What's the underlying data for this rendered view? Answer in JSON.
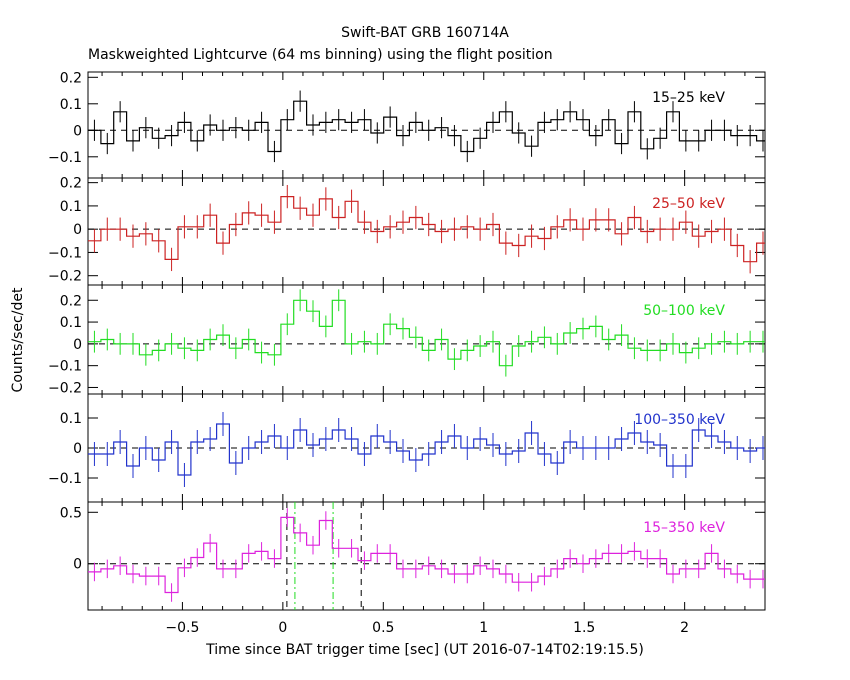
{
  "figure": {
    "title": "Swift-BAT GRB 160714A",
    "subtitle": "Maskweighted Lightcurve (64 ms binning) using the flight position",
    "xlabel": "Time since BAT trigger time [sec] (UT 2016-07-14T02:19:15.5)",
    "ylabel": "Counts/sec/det"
  },
  "chart_data": [
    {
      "type": "line",
      "panel": "15-25 keV",
      "label": "15–25 keV",
      "color": "#000000",
      "xlim": [
        -0.97,
        2.4
      ],
      "ylim": [
        -0.18,
        0.22
      ],
      "yticks": [
        -0.1,
        0,
        0.1,
        0.2
      ],
      "ytick_labels": [
        "−0.1",
        "0",
        "0.1",
        "0.2"
      ],
      "x": [
        -0.97,
        -0.906,
        -0.842,
        -0.778,
        -0.714,
        -0.65,
        -0.586,
        -0.522,
        -0.458,
        -0.394,
        -0.33,
        -0.266,
        -0.202,
        -0.138,
        -0.074,
        -0.01,
        0.054,
        0.118,
        0.182,
        0.246,
        0.31,
        0.374,
        0.438,
        0.502,
        0.566,
        0.63,
        0.694,
        0.758,
        0.822,
        0.886,
        0.95,
        1.014,
        1.078,
        1.142,
        1.206,
        1.27,
        1.334,
        1.398,
        1.462,
        1.526,
        1.59,
        1.654,
        1.718,
        1.782,
        1.846,
        1.91,
        1.974,
        2.038,
        2.102,
        2.166,
        2.23,
        2.294,
        2.358
      ],
      "values": [
        0.0,
        -0.05,
        0.07,
        -0.04,
        0.01,
        -0.03,
        -0.02,
        0.03,
        -0.04,
        0.02,
        0.0,
        0.01,
        0.0,
        0.03,
        -0.08,
        0.04,
        0.11,
        0.02,
        0.03,
        0.04,
        0.03,
        0.04,
        -0.01,
        0.05,
        -0.02,
        0.03,
        0.0,
        0.01,
        -0.02,
        -0.08,
        -0.03,
        0.03,
        0.07,
        -0.01,
        -0.06,
        0.03,
        0.04,
        0.07,
        0.04,
        -0.02,
        0.04,
        -0.05,
        0.07,
        -0.07,
        -0.03,
        0.07,
        -0.04,
        -0.04,
        0.0,
        0.0,
        -0.02,
        -0.02,
        -0.04
      ],
      "errors": [
        0.04,
        0.04,
        0.04,
        0.04,
        0.04,
        0.04,
        0.04,
        0.04,
        0.04,
        0.04,
        0.04,
        0.04,
        0.04,
        0.04,
        0.04,
        0.04,
        0.04,
        0.04,
        0.04,
        0.04,
        0.04,
        0.04,
        0.04,
        0.04,
        0.04,
        0.04,
        0.04,
        0.04,
        0.04,
        0.04,
        0.04,
        0.04,
        0.04,
        0.04,
        0.04,
        0.04,
        0.04,
        0.04,
        0.04,
        0.04,
        0.04,
        0.04,
        0.04,
        0.04,
        0.04,
        0.04,
        0.04,
        0.04,
        0.04,
        0.04,
        0.04,
        0.04,
        0.04
      ]
    },
    {
      "type": "line",
      "panel": "25-50 keV",
      "label": "25–50 keV",
      "color": "#cc2222",
      "xlim": [
        -0.97,
        2.4
      ],
      "ylim": [
        -0.24,
        0.22
      ],
      "yticks": [
        -0.2,
        -0.1,
        0,
        0.1,
        0.2
      ],
      "ytick_labels": [
        "−0.2",
        "−0.1",
        "0",
        "0.1",
        "0.2"
      ],
      "x": [
        -0.97,
        -0.906,
        -0.842,
        -0.778,
        -0.714,
        -0.65,
        -0.586,
        -0.522,
        -0.458,
        -0.394,
        -0.33,
        -0.266,
        -0.202,
        -0.138,
        -0.074,
        -0.01,
        0.054,
        0.118,
        0.182,
        0.246,
        0.31,
        0.374,
        0.438,
        0.502,
        0.566,
        0.63,
        0.694,
        0.758,
        0.822,
        0.886,
        0.95,
        1.014,
        1.078,
        1.142,
        1.206,
        1.27,
        1.334,
        1.398,
        1.462,
        1.526,
        1.59,
        1.654,
        1.718,
        1.782,
        1.846,
        1.91,
        1.974,
        2.038,
        2.102,
        2.166,
        2.23,
        2.294,
        2.358
      ],
      "values": [
        -0.05,
        0.0,
        0.0,
        -0.03,
        -0.02,
        -0.05,
        -0.13,
        0.01,
        0.01,
        0.06,
        -0.06,
        0.02,
        0.07,
        0.06,
        0.03,
        0.14,
        0.09,
        0.06,
        0.13,
        0.05,
        0.12,
        0.03,
        -0.01,
        0.01,
        0.03,
        0.05,
        0.02,
        -0.01,
        0.0,
        0.01,
        0.0,
        0.02,
        -0.06,
        -0.07,
        -0.03,
        -0.04,
        0.01,
        0.04,
        0.0,
        0.04,
        0.04,
        -0.02,
        0.05,
        -0.01,
        0.0,
        0.0,
        0.03,
        -0.03,
        -0.01,
        0.0,
        -0.07,
        -0.14,
        -0.06
      ],
      "errors": [
        0.05,
        0.05,
        0.05,
        0.05,
        0.05,
        0.05,
        0.05,
        0.05,
        0.05,
        0.05,
        0.05,
        0.05,
        0.05,
        0.05,
        0.05,
        0.05,
        0.05,
        0.05,
        0.05,
        0.05,
        0.05,
        0.05,
        0.05,
        0.05,
        0.05,
        0.05,
        0.05,
        0.05,
        0.05,
        0.05,
        0.05,
        0.05,
        0.05,
        0.05,
        0.05,
        0.05,
        0.05,
        0.05,
        0.05,
        0.05,
        0.05,
        0.05,
        0.05,
        0.05,
        0.05,
        0.05,
        0.05,
        0.05,
        0.05,
        0.05,
        0.05,
        0.05,
        0.05
      ]
    },
    {
      "type": "line",
      "panel": "50-100 keV",
      "label": "50–100 keV",
      "color": "#22dd22",
      "xlim": [
        -0.97,
        2.4
      ],
      "ylim": [
        -0.23,
        0.27
      ],
      "yticks": [
        -0.2,
        -0.1,
        0,
        0.1,
        0.2
      ],
      "ytick_labels": [
        "−0.2",
        "−0.1",
        "0",
        "0.1",
        "0.2"
      ],
      "x": [
        -0.97,
        -0.906,
        -0.842,
        -0.778,
        -0.714,
        -0.65,
        -0.586,
        -0.522,
        -0.458,
        -0.394,
        -0.33,
        -0.266,
        -0.202,
        -0.138,
        -0.074,
        -0.01,
        0.054,
        0.118,
        0.182,
        0.246,
        0.31,
        0.374,
        0.438,
        0.502,
        0.566,
        0.63,
        0.694,
        0.758,
        0.822,
        0.886,
        0.95,
        1.014,
        1.078,
        1.142,
        1.206,
        1.27,
        1.334,
        1.398,
        1.462,
        1.526,
        1.59,
        1.654,
        1.718,
        1.782,
        1.846,
        1.91,
        1.974,
        2.038,
        2.102,
        2.166,
        2.23,
        2.294,
        2.358
      ],
      "values": [
        0.01,
        0.02,
        0.0,
        0.0,
        -0.05,
        -0.03,
        0.0,
        -0.02,
        -0.03,
        0.02,
        0.04,
        -0.02,
        0.02,
        -0.04,
        -0.05,
        0.09,
        0.2,
        0.15,
        0.08,
        0.2,
        0.0,
        0.01,
        0.0,
        0.09,
        0.07,
        0.03,
        -0.03,
        0.02,
        -0.07,
        -0.03,
        -0.01,
        0.01,
        -0.1,
        -0.01,
        0.01,
        0.03,
        0.0,
        0.05,
        0.07,
        0.08,
        0.02,
        0.04,
        -0.02,
        -0.03,
        -0.03,
        0.0,
        -0.04,
        -0.02,
        0.0,
        0.01,
        0.0,
        0.01,
        0.01
      ],
      "errors": [
        0.05,
        0.05,
        0.05,
        0.05,
        0.05,
        0.05,
        0.05,
        0.05,
        0.05,
        0.05,
        0.05,
        0.05,
        0.05,
        0.05,
        0.05,
        0.05,
        0.05,
        0.05,
        0.05,
        0.05,
        0.05,
        0.05,
        0.05,
        0.05,
        0.05,
        0.05,
        0.05,
        0.05,
        0.05,
        0.05,
        0.05,
        0.05,
        0.05,
        0.05,
        0.05,
        0.05,
        0.05,
        0.05,
        0.05,
        0.05,
        0.05,
        0.05,
        0.05,
        0.05,
        0.05,
        0.05,
        0.05,
        0.05,
        0.05,
        0.05,
        0.05,
        0.05,
        0.05
      ]
    },
    {
      "type": "line",
      "panel": "100-350 keV",
      "label": "100–350 keV",
      "color": "#2233cc",
      "xlim": [
        -0.97,
        2.4
      ],
      "ylim": [
        -0.18,
        0.18
      ],
      "yticks": [
        -0.1,
        0,
        0.1
      ],
      "ytick_labels": [
        "−0.1",
        "0",
        "0.1"
      ],
      "x": [
        -0.97,
        -0.906,
        -0.842,
        -0.778,
        -0.714,
        -0.65,
        -0.586,
        -0.522,
        -0.458,
        -0.394,
        -0.33,
        -0.266,
        -0.202,
        -0.138,
        -0.074,
        -0.01,
        0.054,
        0.118,
        0.182,
        0.246,
        0.31,
        0.374,
        0.438,
        0.502,
        0.566,
        0.63,
        0.694,
        0.758,
        0.822,
        0.886,
        0.95,
        1.014,
        1.078,
        1.142,
        1.206,
        1.27,
        1.334,
        1.398,
        1.462,
        1.526,
        1.59,
        1.654,
        1.718,
        1.782,
        1.846,
        1.91,
        1.974,
        2.038,
        2.102,
        2.166,
        2.23,
        2.294,
        2.358
      ],
      "values": [
        -0.02,
        -0.02,
        0.02,
        -0.06,
        0.0,
        -0.04,
        0.02,
        -0.09,
        0.02,
        0.03,
        0.08,
        -0.05,
        0.0,
        0.02,
        0.04,
        0.0,
        0.06,
        0.01,
        0.03,
        0.06,
        0.03,
        -0.02,
        0.04,
        0.02,
        -0.01,
        -0.04,
        -0.02,
        0.02,
        0.04,
        0.0,
        0.03,
        0.01,
        -0.02,
        -0.01,
        0.05,
        -0.02,
        -0.05,
        0.02,
        0.0,
        0.0,
        0.0,
        0.03,
        0.05,
        0.02,
        0.01,
        -0.06,
        -0.06,
        0.06,
        0.04,
        0.02,
        0.0,
        -0.01,
        0.0
      ],
      "errors": [
        0.04,
        0.04,
        0.04,
        0.04,
        0.04,
        0.04,
        0.04,
        0.04,
        0.04,
        0.04,
        0.04,
        0.04,
        0.04,
        0.04,
        0.04,
        0.04,
        0.04,
        0.04,
        0.04,
        0.04,
        0.04,
        0.04,
        0.04,
        0.04,
        0.04,
        0.04,
        0.04,
        0.04,
        0.04,
        0.04,
        0.04,
        0.04,
        0.04,
        0.04,
        0.04,
        0.04,
        0.04,
        0.04,
        0.04,
        0.04,
        0.04,
        0.04,
        0.04,
        0.04,
        0.04,
        0.04,
        0.04,
        0.04,
        0.04,
        0.04,
        0.04,
        0.04,
        0.04
      ]
    },
    {
      "type": "line",
      "panel": "15-350 keV",
      "label": "15–350 keV",
      "color": "#dd22dd",
      "xlim": [
        -0.97,
        2.4
      ],
      "ylim": [
        -0.45,
        0.6
      ],
      "yticks": [
        0,
        0.5
      ],
      "ytick_labels": [
        "0",
        "0.5"
      ],
      "x": [
        -0.97,
        -0.906,
        -0.842,
        -0.778,
        -0.714,
        -0.65,
        -0.586,
        -0.522,
        -0.458,
        -0.394,
        -0.33,
        -0.266,
        -0.202,
        -0.138,
        -0.074,
        -0.01,
        0.054,
        0.118,
        0.182,
        0.246,
        0.31,
        0.374,
        0.438,
        0.502,
        0.566,
        0.63,
        0.694,
        0.758,
        0.822,
        0.886,
        0.95,
        1.014,
        1.078,
        1.142,
        1.206,
        1.27,
        1.334,
        1.398,
        1.462,
        1.526,
        1.59,
        1.654,
        1.718,
        1.782,
        1.846,
        1.91,
        1.974,
        2.038,
        2.102,
        2.166,
        2.23,
        2.294,
        2.358
      ],
      "values": [
        -0.08,
        -0.05,
        -0.02,
        -0.1,
        -0.12,
        -0.12,
        -0.28,
        -0.04,
        0.06,
        0.2,
        -0.05,
        -0.05,
        0.1,
        0.12,
        0.05,
        0.45,
        0.3,
        0.18,
        0.42,
        0.15,
        0.15,
        0.03,
        0.1,
        0.1,
        -0.05,
        -0.05,
        -0.02,
        -0.05,
        -0.1,
        -0.1,
        -0.02,
        -0.05,
        -0.1,
        -0.18,
        -0.18,
        -0.12,
        -0.05,
        0.05,
        0.0,
        0.05,
        0.1,
        0.1,
        0.12,
        0.05,
        0.05,
        -0.1,
        -0.05,
        -0.05,
        0.1,
        -0.05,
        -0.1,
        -0.15,
        -0.15
      ],
      "errors": [
        0.09,
        0.09,
        0.09,
        0.09,
        0.09,
        0.09,
        0.09,
        0.09,
        0.09,
        0.09,
        0.09,
        0.09,
        0.09,
        0.09,
        0.09,
        0.09,
        0.09,
        0.09,
        0.09,
        0.09,
        0.09,
        0.09,
        0.09,
        0.09,
        0.09,
        0.09,
        0.09,
        0.09,
        0.09,
        0.09,
        0.09,
        0.09,
        0.09,
        0.09,
        0.09,
        0.09,
        0.09,
        0.09,
        0.09,
        0.09,
        0.09,
        0.09,
        0.09,
        0.09,
        0.09,
        0.09,
        0.09,
        0.09,
        0.09,
        0.09,
        0.09,
        0.09,
        0.09
      ],
      "vlines": [
        {
          "x": 0.02,
          "style": "dashed",
          "color": "#000000"
        },
        {
          "x": 0.39,
          "style": "dashed",
          "color": "#000000"
        },
        {
          "x": 0.06,
          "style": "dashdot",
          "color": "#22dd22"
        },
        {
          "x": 0.25,
          "style": "dashdot",
          "color": "#22dd22"
        }
      ]
    }
  ],
  "x_axis": {
    "ticks": [
      -0.5,
      0,
      0.5,
      1,
      1.5,
      2
    ],
    "tick_labels": [
      "−0.5",
      "0",
      "0.5",
      "1",
      "1.5",
      "2"
    ]
  }
}
